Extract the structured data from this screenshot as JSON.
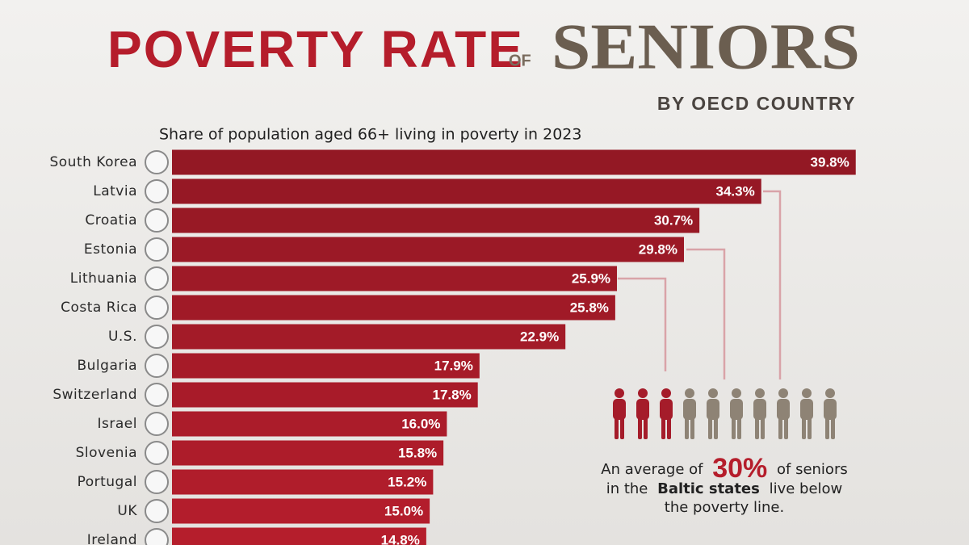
{
  "chart_data": {
    "type": "bar",
    "title_part1": "POVERTY RATE",
    "title_connector": "OF",
    "title_part2": "SENIORS",
    "title_sub": "BY OECD COUNTRY",
    "subtitle": "Share of population aged 66+ living in poverty in 2023",
    "categories": [
      "South Korea",
      "Latvia",
      "Croatia",
      "Estonia",
      "Lithuania",
      "Costa Rica",
      "U.S.",
      "Bulgaria",
      "Switzerland",
      "Israel",
      "Slovenia",
      "Portugal",
      "UK",
      "Ireland"
    ],
    "values": [
      39.8,
      34.3,
      30.7,
      29.8,
      25.9,
      25.8,
      22.9,
      17.9,
      17.8,
      16.0,
      15.8,
      15.2,
      15.0,
      14.8
    ],
    "value_labels": [
      "39.8%",
      "34.3%",
      "30.7%",
      "29.8%",
      "25.9%",
      "25.8%",
      "22.9%",
      "17.9%",
      "17.8%",
      "16.0%",
      "15.8%",
      "15.2%",
      "15.0%",
      "14.8%"
    ],
    "color": "#b81e2d",
    "xlim": [
      0,
      40
    ],
    "annotation": [
      "An average of",
      "30%",
      "of seniors",
      "in the",
      "Baltic states",
      "live below",
      "the poverty line."
    ]
  }
}
